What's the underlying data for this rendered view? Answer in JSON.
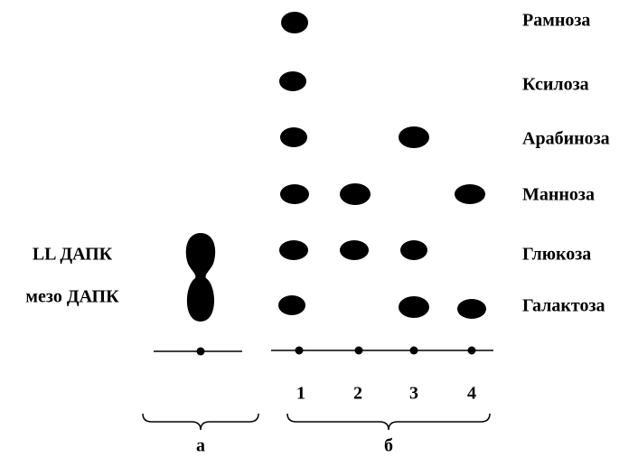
{
  "sugars": [
    "Рамноза",
    "Ксилоза",
    "Арабиноза",
    "Манноза",
    "Глюкоза",
    "Галактоза"
  ],
  "standards": [
    "LL ДАПК",
    "мезо ДАПК"
  ],
  "lanes": [
    "1",
    "2",
    "3",
    "4"
  ],
  "groups": [
    "а",
    "б"
  ]
}
